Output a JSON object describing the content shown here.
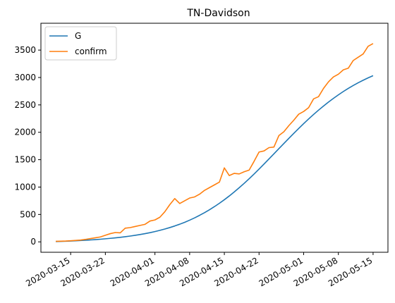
{
  "chart_data": {
    "type": "line",
    "title": "TN-Davidson",
    "xlabel": "",
    "ylabel": "",
    "x_start": "2020-03-12",
    "x_end": "2020-05-15",
    "xlim": [
      "2020-03-09",
      "2020-05-18"
    ],
    "ylim": [
      -190,
      3990
    ],
    "grid": false,
    "legend_position": "top-left",
    "x_ticks": [
      "2020-03-15",
      "2020-03-22",
      "2020-04-01",
      "2020-04-08",
      "2020-04-15",
      "2020-04-22",
      "2020-05-01",
      "2020-05-08",
      "2020-05-15"
    ],
    "y_ticks": [
      0,
      500,
      1000,
      1500,
      2000,
      2500,
      3000,
      3500
    ],
    "series": [
      {
        "name": "G",
        "color": "#1f77b4",
        "values": [
          5,
          8,
          11,
          15,
          19,
          24,
          29,
          35,
          41,
          48,
          56,
          64,
          73,
          83,
          94,
          106,
          119,
          134,
          150,
          168,
          188,
          210,
          234,
          261,
          290,
          322,
          357,
          396,
          438,
          484,
          533,
          586,
          643,
          704,
          769,
          838,
          911,
          988,
          1068,
          1152,
          1239,
          1328,
          1420,
          1513,
          1607,
          1701,
          1795,
          1888,
          1980,
          2070,
          2158,
          2243,
          2325,
          2404,
          2479,
          2551,
          2619,
          2683,
          2744,
          2801,
          2854,
          2904,
          2950,
          2993,
          3033
        ]
      },
      {
        "name": "confirm",
        "color": "#ff7f0e",
        "values": [
          10,
          12,
          15,
          20,
          26,
          33,
          45,
          60,
          75,
          90,
          120,
          150,
          170,
          165,
          250,
          260,
          280,
          300,
          320,
          380,
          400,
          450,
          550,
          680,
          790,
          700,
          750,
          800,
          820,
          870,
          940,
          990,
          1040,
          1090,
          1350,
          1210,
          1250,
          1240,
          1280,
          1310,
          1470,
          1640,
          1660,
          1720,
          1730,
          1940,
          2010,
          2120,
          2220,
          2330,
          2380,
          2450,
          2610,
          2650,
          2800,
          2920,
          3010,
          3060,
          3140,
          3170,
          3310,
          3370,
          3430,
          3570,
          3620
        ]
      }
    ]
  }
}
